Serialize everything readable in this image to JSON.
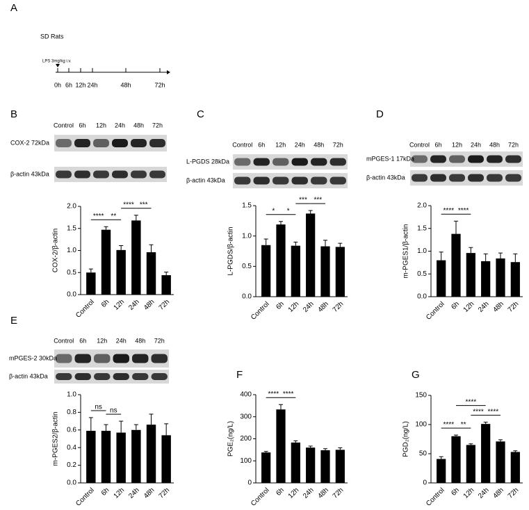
{
  "panel_a": {
    "letter": "A",
    "subject": "SD Rats",
    "treatment": "LPS 3mg/kg i.v.",
    "timepoints": [
      "0h",
      "6h",
      "12h",
      "24h",
      "48h",
      "72h"
    ]
  },
  "blots": [
    {
      "lanes": [
        "Control",
        "6h",
        "12h",
        "24h",
        "48h",
        "72h"
      ],
      "rows": [
        "COX-2 72kDa",
        "β-actin 43kDa"
      ]
    },
    {
      "lanes": [
        "Control",
        "6h",
        "12h",
        "24h",
        "48h",
        "72h"
      ],
      "rows": [
        "L-PGDS 28kDa",
        "β-actin 43kDa"
      ]
    },
    {
      "lanes": [
        "Control",
        "6h",
        "12h",
        "24h",
        "48h",
        "72h"
      ],
      "rows": [
        "mPGES-1 17kDa",
        "β-actin 43kDa"
      ]
    },
    {
      "lanes": [
        "Control",
        "6h",
        "12h",
        "24h",
        "48h",
        "72h"
      ],
      "rows": [
        "mPGES-2 30kDa",
        "β-actin 43kDa"
      ]
    }
  ],
  "chart_data": [
    {
      "type": "bar",
      "panel": "B",
      "ylabel": "COX-2/β-actin",
      "categories": [
        "Control",
        "6h",
        "12h",
        "24h",
        "48h",
        "72h"
      ],
      "values": [
        0.5,
        1.47,
        1.01,
        1.68,
        0.96,
        0.44
      ],
      "errors": [
        0.08,
        0.07,
        0.1,
        0.12,
        0.17,
        0.07
      ],
      "color": "#000000",
      "ylim": [
        0,
        2
      ],
      "yticks": [
        {
          "value": 0,
          "label": "0.0"
        },
        0.5,
        {
          "value": 1,
          "label": "1.0"
        },
        1.5,
        {
          "value": 2,
          "label": "2.0"
        }
      ],
      "annotations": [
        {
          "from": "Control",
          "to": "6h",
          "label": "****"
        },
        {
          "from": "6h",
          "to": "12h",
          "label": "**"
        },
        {
          "from": "12h",
          "to": "24h",
          "label": "****"
        },
        {
          "from": "24h",
          "to": "48h",
          "label": "***"
        }
      ]
    },
    {
      "type": "bar",
      "panel": "C",
      "ylabel": "L-PGDS/β-actin",
      "categories": [
        "Control",
        "6h",
        "12h",
        "24h",
        "48h",
        "72h"
      ],
      "values": [
        0.85,
        1.19,
        0.84,
        1.37,
        0.83,
        0.82
      ],
      "errors": [
        0.1,
        0.05,
        0.06,
        0.05,
        0.1,
        0.06
      ],
      "color": "#000000",
      "ylim": [
        0,
        1.5
      ],
      "yticks": [
        {
          "value": 0,
          "label": "0.0"
        },
        0.5,
        {
          "value": 1,
          "label": "1.0"
        },
        1.5
      ],
      "annotations": [
        {
          "from": "Control",
          "to": "6h",
          "label": "*"
        },
        {
          "from": "6h",
          "to": "12h",
          "label": "*"
        },
        {
          "from": "12h",
          "to": "24h",
          "label": "***"
        },
        {
          "from": "24h",
          "to": "48h",
          "label": "***"
        }
      ]
    },
    {
      "type": "bar",
      "panel": "D",
      "ylabel": "m-PGES1/β-actin",
      "categories": [
        "Control",
        "6h",
        "12h",
        "24h",
        "48h",
        "72h"
      ],
      "values": [
        0.8,
        1.38,
        0.96,
        0.78,
        0.84,
        0.76
      ],
      "errors": [
        0.18,
        0.28,
        0.12,
        0.16,
        0.12,
        0.18
      ],
      "color": "#000000",
      "ylim": [
        0,
        2
      ],
      "yticks": [
        {
          "value": 0,
          "label": "0.0"
        },
        0.5,
        {
          "value": 1,
          "label": "1.0"
        },
        1.5,
        {
          "value": 2,
          "label": "2.0"
        }
      ],
      "annotations": [
        {
          "from": "Control",
          "to": "6h",
          "label": "****"
        },
        {
          "from": "6h",
          "to": "12h",
          "label": "****"
        }
      ]
    },
    {
      "type": "bar",
      "panel": "E",
      "ylabel": "m-PGES2/β-actin",
      "categories": [
        "Control",
        "6h",
        "12h",
        "24h",
        "48h",
        "72h"
      ],
      "values": [
        0.59,
        0.59,
        0.57,
        0.6,
        0.66,
        0.54
      ],
      "errors": [
        0.15,
        0.07,
        0.13,
        0.06,
        0.12,
        0.13
      ],
      "color": "#000000",
      "ylim": [
        0,
        1
      ],
      "yticks": [
        {
          "value": 0,
          "label": "0.0"
        },
        0.2,
        0.4,
        0.6,
        0.8,
        {
          "value": 1,
          "label": "1.0"
        }
      ],
      "annotations": [
        {
          "from": "Control",
          "to": "6h",
          "label": "ns"
        },
        {
          "from": "6h",
          "to": "12h",
          "label": "ns"
        }
      ]
    },
    {
      "type": "bar",
      "panel": "F",
      "ylabel": "PGE₂(ng/L)",
      "categories": [
        "Control",
        "6h",
        "12h",
        "24h",
        "48h",
        "72h"
      ],
      "values": [
        138,
        333,
        183,
        160,
        148,
        150
      ],
      "errors": [
        5,
        22,
        8,
        7,
        7,
        9
      ],
      "color": "#000000",
      "ylim": [
        0,
        400
      ],
      "yticks": [
        0,
        100,
        200,
        300,
        400
      ],
      "annotations": [
        {
          "from": "Control",
          "to": "6h",
          "label": "****"
        },
        {
          "from": "6h",
          "to": "12h",
          "label": "****"
        }
      ]
    },
    {
      "type": "bar",
      "panel": "G",
      "ylabel": "PGD₂(ng/L)",
      "categories": [
        "Control",
        "6h",
        "12h",
        "24h",
        "48h",
        "72h"
      ],
      "values": [
        41,
        80,
        65,
        101,
        71,
        53
      ],
      "errors": [
        4,
        2,
        2,
        3,
        3,
        2
      ],
      "color": "#000000",
      "ylim": [
        0,
        150
      ],
      "yticks": [
        0,
        50,
        100,
        150
      ],
      "annotations": [
        {
          "from": "Control",
          "to": "6h",
          "label": "****"
        },
        {
          "from": "6h",
          "to": "12h",
          "label": "**"
        },
        {
          "from": "12h",
          "to": "24h",
          "label": "****"
        },
        {
          "from": "24h",
          "to": "48h",
          "label": "****"
        },
        {
          "from": "6h",
          "to": "24h",
          "label": "****"
        }
      ]
    }
  ]
}
